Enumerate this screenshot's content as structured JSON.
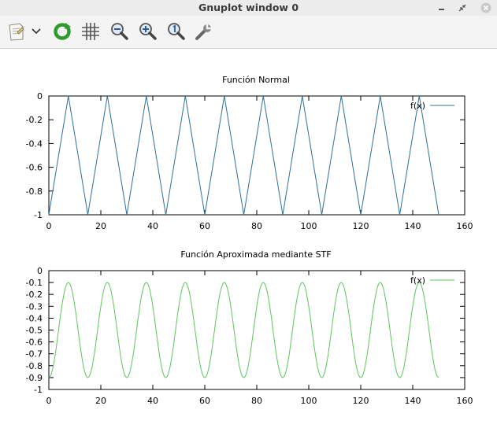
{
  "window": {
    "title": "Gnuplot window 0",
    "controls": [
      "minimize-icon",
      "restore-icon",
      "close-icon"
    ]
  },
  "toolbar": {
    "items": [
      "copy-to-clipboard-icon",
      "dropdown-arrow-icon",
      "replot-icon",
      "grid-icon",
      "zoom-out-icon",
      "zoom-in-icon",
      "unzoom-icon",
      "settings-wrench-icon"
    ]
  },
  "chart_data": [
    {
      "type": "line",
      "title": "Función Normal",
      "xlabel": "",
      "ylabel": "",
      "xlim": [
        0,
        160
      ],
      "ylim": [
        -1,
        0
      ],
      "xticks": [
        "0",
        "20",
        "40",
        "60",
        "80",
        "100",
        "120",
        "140",
        "160"
      ],
      "yticks": [
        "0",
        "-0.2",
        "-0.4",
        "-0.6",
        "-0.8",
        "-1"
      ],
      "legend_position": "top-right",
      "grid": false,
      "series": [
        {
          "name": "f(x)",
          "color": "#2f6f9a",
          "x": [
            0,
            7.5,
            15,
            22.5,
            30,
            37.5,
            45,
            52.5,
            60,
            67.5,
            75,
            82.5,
            90,
            97.5,
            105,
            112.5,
            120,
            127.5,
            135,
            142.5,
            150
          ],
          "y": [
            -1,
            0,
            -1,
            0,
            -1,
            0,
            -1,
            0,
            -1,
            0,
            -1,
            0,
            -1,
            0,
            -1,
            0,
            -1,
            0,
            -1,
            0,
            -1
          ]
        }
      ]
    },
    {
      "type": "line",
      "title": "Función Aproximada mediante STF",
      "xlabel": "",
      "ylabel": "",
      "xlim": [
        0,
        160
      ],
      "ylim": [
        -1,
        0
      ],
      "xticks": [
        "0",
        "20",
        "40",
        "60",
        "80",
        "100",
        "120",
        "140",
        "160"
      ],
      "yticks": [
        "0",
        "-0.1",
        "-0.2",
        "-0.3",
        "-0.4",
        "-0.5",
        "-0.6",
        "-0.7",
        "-0.8",
        "-0.9",
        "-1"
      ],
      "legend_position": "top-right",
      "grid": false,
      "series": [
        {
          "name": "f(x)",
          "color": "#5cc75c",
          "function": "-0.5 - 0.4*cos(2*pi*x/15)",
          "x_range": [
            0,
            150
          ],
          "min": -0.9,
          "max": -0.1,
          "period": 15
        }
      ]
    }
  ]
}
